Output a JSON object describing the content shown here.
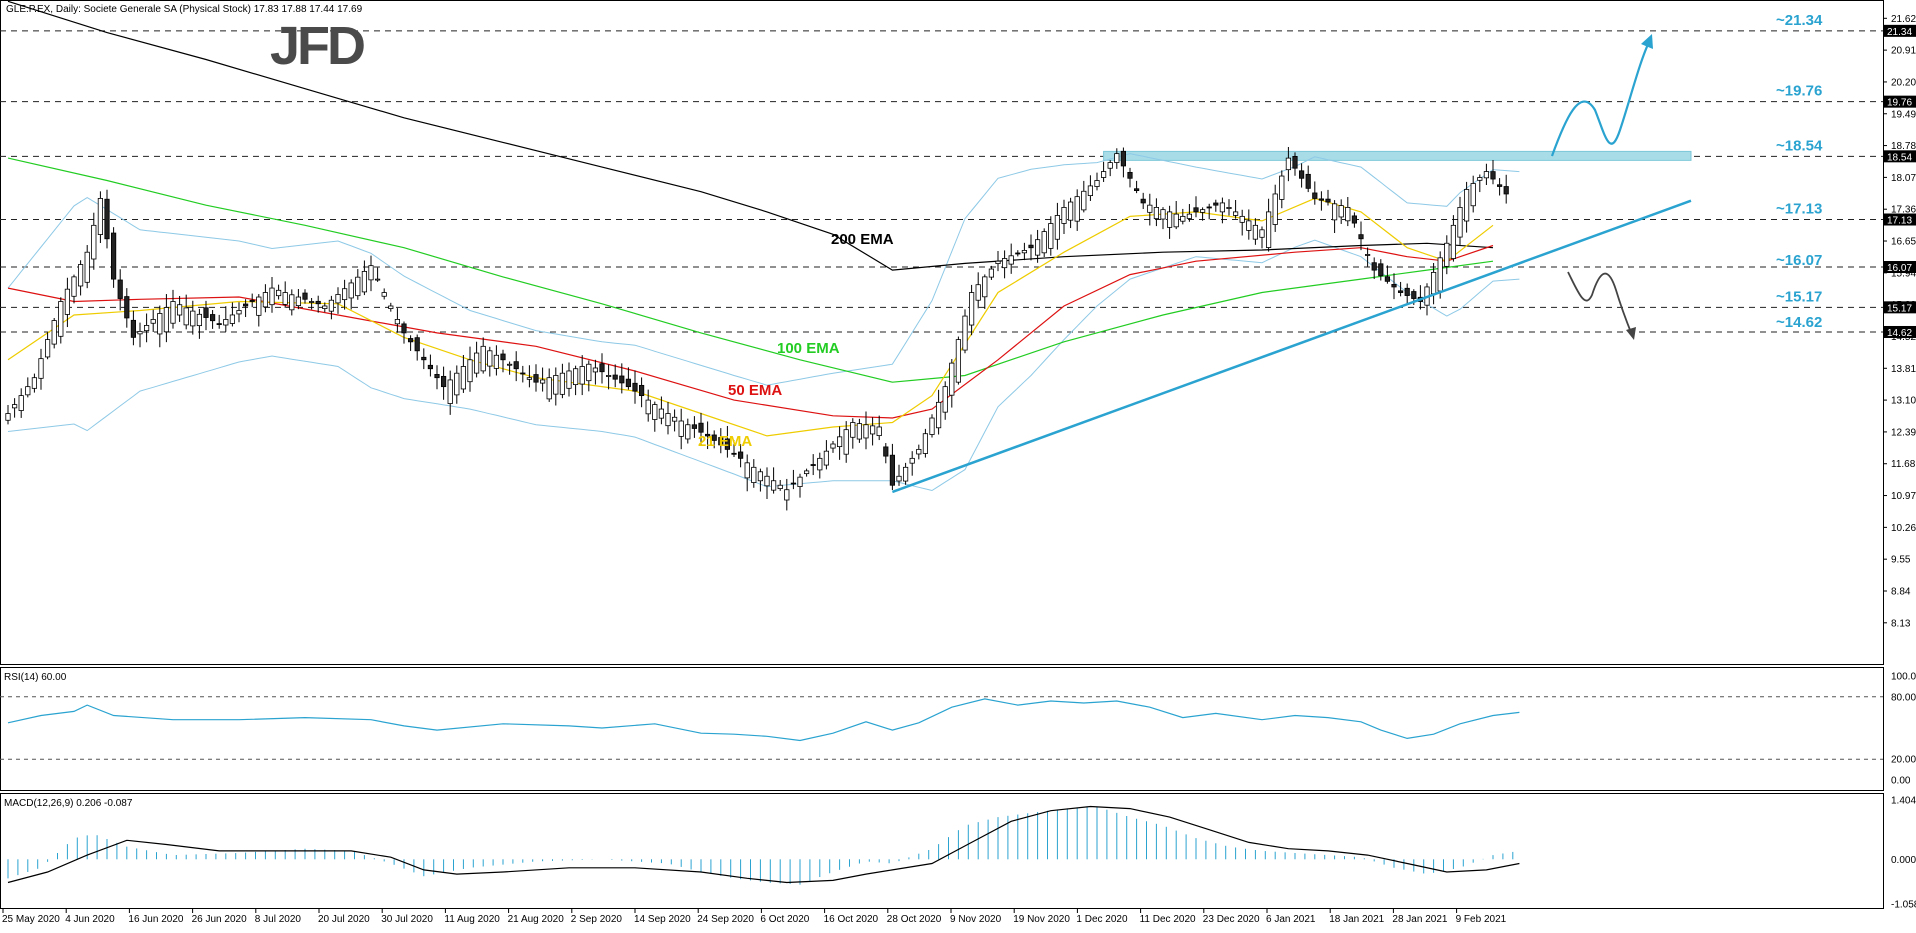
{
  "header": {
    "symbol_text": "GLE.P.EX, Daily:  Societe Generale SA (Physical Stock)  17.83 17.88 17.44 17.69",
    "logo": "JFD"
  },
  "chart_data": {
    "type": "candlestick",
    "price_axis": {
      "ticks": [
        "21.62",
        "20.91",
        "20.20",
        "19.49",
        "18.78",
        "18.07",
        "17.36",
        "16.65",
        "15.94",
        "15.23",
        "14.52",
        "13.81",
        "13.10",
        "12.39",
        "11.68",
        "10.97",
        "10.26",
        "9.55",
        "8.84",
        "8.13"
      ],
      "ylim": [
        7.3,
        21.85
      ]
    },
    "levels": [
      {
        "value": 21.34,
        "label": "~21.34",
        "tag": "21.34"
      },
      {
        "value": 19.76,
        "label": "~19.76",
        "tag": "19.76"
      },
      {
        "value": 18.54,
        "label": "~18.54",
        "tag": "18.54"
      },
      {
        "value": 17.13,
        "label": "~17.13",
        "tag": "17.13"
      },
      {
        "value": 16.07,
        "label": "~16.07",
        "tag": "16.07"
      },
      {
        "value": 15.17,
        "label": "~15.17",
        "tag": "15.17"
      },
      {
        "value": 14.62,
        "label": "~14.62",
        "tag": "14.62"
      }
    ],
    "x_axis": {
      "labels": [
        "25 May 2020",
        "4 Jun 2020",
        "16 Jun 2020",
        "26 Jun 2020",
        "8 Jul 2020",
        "20 Jul 2020",
        "30 Jul 2020",
        "11 Aug 2020",
        "21 Aug 2020",
        "2 Sep 2020",
        "14 Sep 2020",
        "24 Sep 2020",
        "6 Oct 2020",
        "16 Oct 2020",
        "28 Oct 2020",
        "9 Nov 2020",
        "19 Nov 2020",
        "1 Dec 2020",
        "11 Dec 2020",
        "23 Dec 2020",
        "6 Jan 2021",
        "18 Jan 2021",
        "28 Jan 2021",
        "9 Feb 2021"
      ]
    },
    "series": [
      {
        "name": "200 EMA",
        "color": "#000000",
        "points": [
          [
            0,
            22.0
          ],
          [
            15,
            21.3
          ],
          [
            30,
            20.7
          ],
          [
            45,
            20.05
          ],
          [
            60,
            19.4
          ],
          [
            75,
            18.85
          ],
          [
            90,
            18.3
          ],
          [
            105,
            17.75
          ],
          [
            115,
            17.3
          ],
          [
            125,
            16.8
          ],
          [
            134,
            16.0
          ],
          [
            145,
            16.15
          ],
          [
            160,
            16.3
          ],
          [
            175,
            16.4
          ],
          [
            190,
            16.45
          ],
          [
            205,
            16.55
          ],
          [
            215,
            16.6
          ],
          [
            225,
            16.5
          ]
        ]
      },
      {
        "name": "100 EMA",
        "color": "#22cc22",
        "points": [
          [
            0,
            18.5
          ],
          [
            15,
            18.0
          ],
          [
            30,
            17.45
          ],
          [
            45,
            17.0
          ],
          [
            60,
            16.5
          ],
          [
            75,
            15.85
          ],
          [
            90,
            15.25
          ],
          [
            105,
            14.6
          ],
          [
            120,
            14.0
          ],
          [
            134,
            13.5
          ],
          [
            145,
            13.65
          ],
          [
            160,
            14.4
          ],
          [
            175,
            15.0
          ],
          [
            190,
            15.5
          ],
          [
            205,
            15.8
          ],
          [
            215,
            16.0
          ],
          [
            225,
            16.2
          ]
        ]
      },
      {
        "name": "50 EMA",
        "color": "#dd1111",
        "points": [
          [
            0,
            15.6
          ],
          [
            10,
            15.3
          ],
          [
            20,
            15.35
          ],
          [
            35,
            15.4
          ],
          [
            50,
            15.0
          ],
          [
            65,
            14.6
          ],
          [
            80,
            14.3
          ],
          [
            95,
            13.75
          ],
          [
            110,
            13.1
          ],
          [
            125,
            12.75
          ],
          [
            134,
            12.7
          ],
          [
            140,
            12.9
          ],
          [
            150,
            14.0
          ],
          [
            160,
            15.2
          ],
          [
            170,
            15.9
          ],
          [
            180,
            16.2
          ],
          [
            195,
            16.4
          ],
          [
            205,
            16.5
          ],
          [
            212,
            16.3
          ],
          [
            218,
            16.2
          ],
          [
            225,
            16.55
          ]
        ]
      },
      {
        "name": "21 EMA",
        "color": "#eecc00",
        "points": [
          [
            0,
            14.0
          ],
          [
            10,
            15.0
          ],
          [
            20,
            15.1
          ],
          [
            35,
            15.3
          ],
          [
            50,
            15.25
          ],
          [
            60,
            14.5
          ],
          [
            70,
            14.0
          ],
          [
            80,
            13.6
          ],
          [
            95,
            13.3
          ],
          [
            105,
            12.8
          ],
          [
            115,
            12.3
          ],
          [
            125,
            12.5
          ],
          [
            134,
            12.6
          ],
          [
            140,
            13.2
          ],
          [
            150,
            15.5
          ],
          [
            160,
            16.4
          ],
          [
            170,
            17.2
          ],
          [
            180,
            17.3
          ],
          [
            190,
            17.1
          ],
          [
            198,
            17.6
          ],
          [
            205,
            17.3
          ],
          [
            212,
            16.5
          ],
          [
            218,
            16.2
          ],
          [
            225,
            17.0
          ]
        ]
      }
    ],
    "ema_labels": [
      {
        "text": "200 EMA",
        "color": "#000000"
      },
      {
        "text": "100 EMA",
        "color": "#22cc22"
      },
      {
        "text": "50 EMA",
        "color": "#dd1111"
      },
      {
        "text": "21 EMA",
        "color": "#eecc00"
      }
    ],
    "trendline": {
      "color": "#2aa3d0",
      "from": [
        134,
        11.05
      ],
      "to": [
        255,
        17.55
      ]
    },
    "resistance_zone": {
      "low": 18.45,
      "high": 18.65,
      "from_index": 166,
      "to_index": 255
    },
    "rsi": {
      "title": "RSI(14) 60.00",
      "ticks": [
        "100.00",
        "80.00",
        "20.00",
        "0.00"
      ],
      "levels": [
        80,
        20
      ],
      "color": "#2aa3d0",
      "points": [
        [
          0,
          55
        ],
        [
          5,
          62
        ],
        [
          10,
          66
        ],
        [
          12,
          72
        ],
        [
          16,
          62
        ],
        [
          25,
          58
        ],
        [
          35,
          58
        ],
        [
          45,
          60
        ],
        [
          55,
          58
        ],
        [
          60,
          52
        ],
        [
          65,
          48
        ],
        [
          75,
          54
        ],
        [
          85,
          52
        ],
        [
          90,
          50
        ],
        [
          98,
          54
        ],
        [
          105,
          45
        ],
        [
          110,
          44
        ],
        [
          115,
          42
        ],
        [
          120,
          38
        ],
        [
          125,
          45
        ],
        [
          130,
          56
        ],
        [
          134,
          48
        ],
        [
          138,
          55
        ],
        [
          143,
          70
        ],
        [
          148,
          78
        ],
        [
          153,
          72
        ],
        [
          158,
          76
        ],
        [
          163,
          74
        ],
        [
          168,
          76
        ],
        [
          173,
          70
        ],
        [
          178,
          60
        ],
        [
          183,
          64
        ],
        [
          190,
          58
        ],
        [
          195,
          62
        ],
        [
          200,
          60
        ],
        [
          205,
          56
        ],
        [
          208,
          48
        ],
        [
          212,
          40
        ],
        [
          216,
          44
        ],
        [
          220,
          54
        ],
        [
          225,
          62
        ],
        [
          229,
          65
        ]
      ]
    },
    "macd": {
      "title": "MACD(12,26,9) 0.206 -0.087",
      "ticks": [
        "1.404",
        "0.000",
        "-1.058"
      ],
      "ylim": [
        -1.058,
        1.404
      ],
      "color_hist": "#2aa3d0",
      "color_signal": "#000000",
      "hist": [
        [
          0,
          -0.45
        ],
        [
          5,
          -0.2
        ],
        [
          10,
          0.5
        ],
        [
          13,
          0.6
        ],
        [
          18,
          0.3
        ],
        [
          25,
          0.1
        ],
        [
          35,
          0.15
        ],
        [
          45,
          0.25
        ],
        [
          52,
          0.2
        ],
        [
          58,
          -0.1
        ],
        [
          63,
          -0.4
        ],
        [
          70,
          -0.2
        ],
        [
          80,
          -0.05
        ],
        [
          90,
          0.0
        ],
        [
          100,
          -0.1
        ],
        [
          105,
          -0.3
        ],
        [
          110,
          -0.45
        ],
        [
          115,
          -0.55
        ],
        [
          120,
          -0.6
        ],
        [
          125,
          -0.3
        ],
        [
          130,
          -0.05
        ],
        [
          134,
          -0.1
        ],
        [
          140,
          0.25
        ],
        [
          145,
          0.8
        ],
        [
          150,
          1.0
        ],
        [
          155,
          1.1
        ],
        [
          160,
          1.2
        ],
        [
          165,
          1.25
        ],
        [
          170,
          1.0
        ],
        [
          175,
          0.8
        ],
        [
          180,
          0.5
        ],
        [
          185,
          0.3
        ],
        [
          190,
          0.2
        ],
        [
          195,
          0.15
        ],
        [
          200,
          0.1
        ],
        [
          205,
          0.05
        ],
        [
          210,
          -0.2
        ],
        [
          215,
          -0.35
        ],
        [
          220,
          -0.2
        ],
        [
          225,
          0.1
        ],
        [
          229,
          0.2
        ]
      ],
      "signal": [
        [
          0,
          -0.55
        ],
        [
          6,
          -0.3
        ],
        [
          12,
          0.1
        ],
        [
          18,
          0.45
        ],
        [
          24,
          0.35
        ],
        [
          32,
          0.2
        ],
        [
          45,
          0.2
        ],
        [
          52,
          0.2
        ],
        [
          58,
          0.05
        ],
        [
          63,
          -0.25
        ],
        [
          68,
          -0.35
        ],
        [
          75,
          -0.3
        ],
        [
          85,
          -0.2
        ],
        [
          95,
          -0.2
        ],
        [
          105,
          -0.3
        ],
        [
          112,
          -0.45
        ],
        [
          118,
          -0.55
        ],
        [
          125,
          -0.5
        ],
        [
          130,
          -0.35
        ],
        [
          134,
          -0.25
        ],
        [
          140,
          -0.1
        ],
        [
          146,
          0.4
        ],
        [
          152,
          0.9
        ],
        [
          158,
          1.15
        ],
        [
          164,
          1.25
        ],
        [
          170,
          1.2
        ],
        [
          176,
          1.0
        ],
        [
          182,
          0.7
        ],
        [
          188,
          0.4
        ],
        [
          194,
          0.25
        ],
        [
          200,
          0.2
        ],
        [
          206,
          0.1
        ],
        [
          212,
          -0.1
        ],
        [
          218,
          -0.3
        ],
        [
          224,
          -0.25
        ],
        [
          229,
          -0.1
        ]
      ]
    }
  }
}
